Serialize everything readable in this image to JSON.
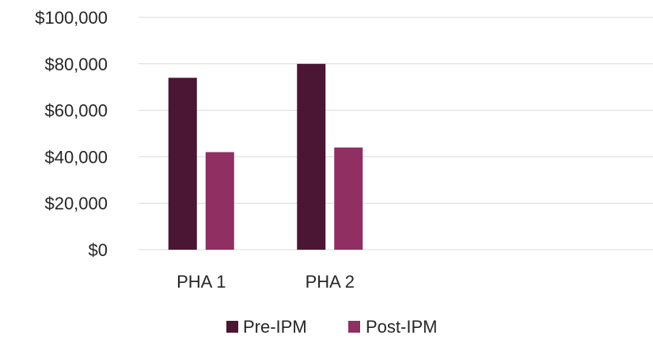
{
  "chart_data": {
    "type": "bar",
    "title": "",
    "xlabel": "",
    "ylabel": "",
    "categories": [
      "PHA 1",
      "PHA 2",
      "",
      ""
    ],
    "series": [
      {
        "name": "Pre-IPM",
        "values": [
          74000,
          80000,
          null,
          null
        ],
        "color": "#4b1534"
      },
      {
        "name": "Post-IPM",
        "values": [
          42000,
          44000,
          null,
          null
        ],
        "color": "#8f2f62"
      }
    ],
    "ylim": [
      0,
      100000
    ],
    "yticks": [
      0,
      20000,
      40000,
      60000,
      80000,
      100000
    ],
    "ytick_labels": [
      "$0",
      "$20,000",
      "$40,000",
      "$60,000",
      "$80,000",
      "$100,000"
    ],
    "grid": true,
    "gridline_color": "#d9d9d9",
    "legend": {
      "position": "bottom",
      "entries": [
        "Pre-IPM",
        "Post-IPM"
      ]
    }
  }
}
